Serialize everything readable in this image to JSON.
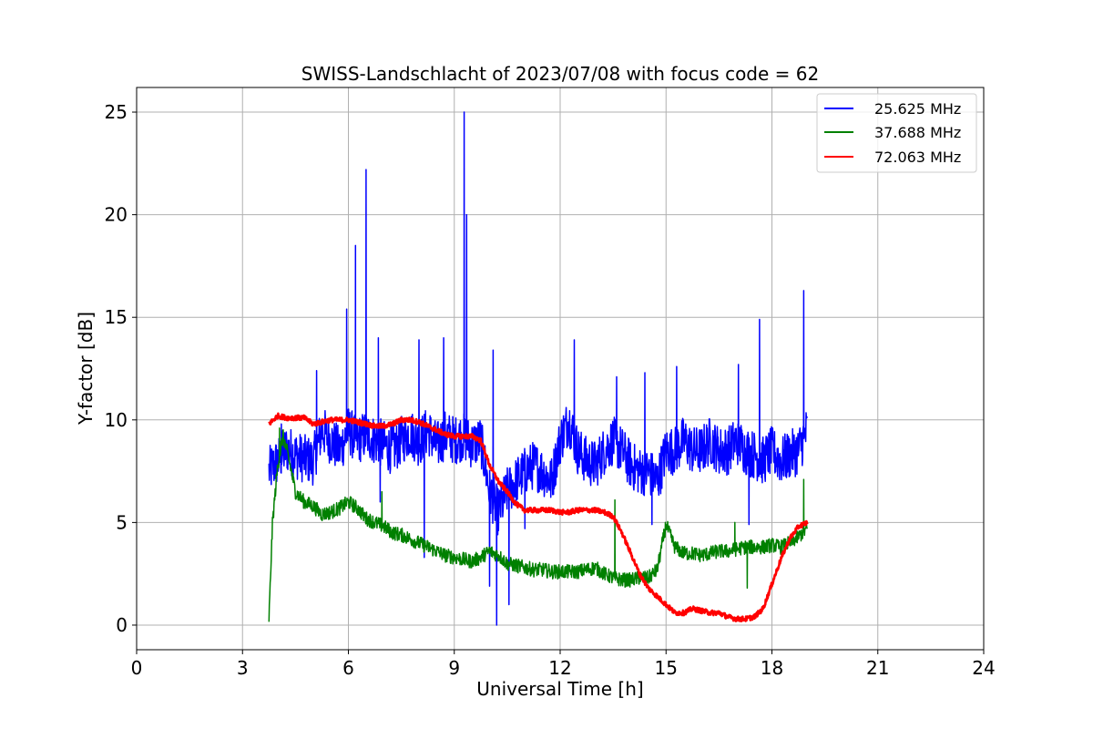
{
  "chart_data": {
    "type": "line",
    "title": "SWISS-Landschlacht of 2023/07/08 with focus code = 62",
    "xlabel": "Universal Time [h]",
    "ylabel": "Y-factor [dB]",
    "xlim": [
      0,
      24
    ],
    "ylim": [
      -1.2,
      26.2
    ],
    "xticks": [
      0,
      3,
      6,
      9,
      12,
      15,
      18,
      21,
      24
    ],
    "yticks": [
      0,
      5,
      10,
      15,
      20,
      25
    ],
    "grid": true,
    "legend_position": "top-right",
    "series": [
      {
        "name": "25.625 MHz",
        "color": "#0000ff",
        "x": [
          3.75,
          4.0,
          4.25,
          4.5,
          4.75,
          5.0,
          5.25,
          5.5,
          5.75,
          6.0,
          6.25,
          6.5,
          6.75,
          7.0,
          7.25,
          7.5,
          7.75,
          8.0,
          8.25,
          8.5,
          8.75,
          9.0,
          9.25,
          9.5,
          9.75,
          10.0,
          10.25,
          10.5,
          10.75,
          11.0,
          11.25,
          11.5,
          11.75,
          12.0,
          12.25,
          12.5,
          12.75,
          13.0,
          13.25,
          13.5,
          13.75,
          14.0,
          14.25,
          14.5,
          14.75,
          15.0,
          15.25,
          15.5,
          15.75,
          16.0,
          16.25,
          16.5,
          16.75,
          17.0,
          17.25,
          17.5,
          17.75,
          18.0,
          18.25,
          18.5,
          18.75,
          19.0
        ],
        "y": [
          7.5,
          8.0,
          8.6,
          8.3,
          8.1,
          8.0,
          9.5,
          9.0,
          8.5,
          9.5,
          9.0,
          9.3,
          9.0,
          8.8,
          8.5,
          9.0,
          9.4,
          8.9,
          9.5,
          8.7,
          9.3,
          9.0,
          9.2,
          8.8,
          9.0,
          6.5,
          5.5,
          6.5,
          7.0,
          7.5,
          7.8,
          7.5,
          7.0,
          9.0,
          10.0,
          8.5,
          8.0,
          7.8,
          8.5,
          9.0,
          8.5,
          7.8,
          7.5,
          7.5,
          7.0,
          8.5,
          8.5,
          9.0,
          8.5,
          8.5,
          9.0,
          8.5,
          8.5,
          9.0,
          8.5,
          8.3,
          8.0,
          8.5,
          8.0,
          8.3,
          8.5,
          9.5
        ],
        "spikes": [
          {
            "x": 4.1,
            "y": 9.8
          },
          {
            "x": 5.1,
            "y": 12.4
          },
          {
            "x": 5.95,
            "y": 15.4
          },
          {
            "x": 6.2,
            "y": 18.5
          },
          {
            "x": 6.5,
            "y": 22.2
          },
          {
            "x": 6.85,
            "y": 14.0
          },
          {
            "x": 8.0,
            "y": 13.9
          },
          {
            "x": 8.7,
            "y": 14.0
          },
          {
            "x": 9.28,
            "y": 25.0
          },
          {
            "x": 9.35,
            "y": 20.0
          },
          {
            "x": 10.1,
            "y": 13.4
          },
          {
            "x": 12.4,
            "y": 13.9
          },
          {
            "x": 13.6,
            "y": 12.1
          },
          {
            "x": 14.4,
            "y": 12.3
          },
          {
            "x": 15.3,
            "y": 12.6
          },
          {
            "x": 17.05,
            "y": 12.7
          },
          {
            "x": 17.65,
            "y": 14.9
          },
          {
            "x": 18.9,
            "y": 16.3
          }
        ],
        "dips": [
          {
            "x": 6.9,
            "y": 6.0
          },
          {
            "x": 8.15,
            "y": 3.3
          },
          {
            "x": 10.0,
            "y": 1.9
          },
          {
            "x": 10.2,
            "y": 0.0
          },
          {
            "x": 10.55,
            "y": 1.0
          },
          {
            "x": 11.0,
            "y": 4.7
          },
          {
            "x": 14.6,
            "y": 4.9
          },
          {
            "x": 17.35,
            "y": 4.9
          }
        ]
      },
      {
        "name": "37.688 MHz",
        "color": "#008000",
        "x": [
          3.75,
          3.85,
          4.0,
          4.15,
          4.3,
          4.5,
          4.75,
          5.0,
          5.25,
          5.5,
          5.75,
          6.0,
          6.25,
          6.5,
          6.75,
          7.0,
          7.25,
          7.5,
          7.75,
          8.0,
          8.25,
          8.5,
          8.75,
          9.0,
          9.25,
          9.5,
          9.75,
          10.0,
          10.25,
          10.5,
          10.75,
          11.0,
          11.25,
          11.5,
          11.75,
          12.0,
          12.25,
          12.5,
          12.75,
          13.0,
          13.25,
          13.5,
          13.75,
          14.0,
          14.25,
          14.5,
          14.75,
          15.0,
          15.25,
          15.5,
          15.75,
          16.0,
          16.25,
          16.5,
          16.75,
          17.0,
          17.25,
          17.5,
          17.75,
          18.0,
          18.25,
          18.5,
          18.75,
          19.0
        ],
        "y": [
          0.3,
          5.0,
          7.8,
          9.2,
          8.2,
          6.5,
          6.0,
          5.8,
          5.4,
          5.5,
          5.7,
          6.0,
          5.7,
          5.2,
          5.0,
          4.8,
          4.5,
          4.4,
          4.2,
          4.0,
          3.8,
          3.6,
          3.4,
          3.3,
          3.2,
          3.1,
          3.3,
          3.6,
          3.4,
          3.0,
          2.9,
          2.8,
          2.7,
          2.7,
          2.6,
          2.6,
          2.6,
          2.6,
          2.7,
          2.8,
          2.5,
          2.3,
          2.2,
          2.2,
          2.3,
          2.3,
          2.7,
          4.9,
          3.8,
          3.5,
          3.5,
          3.4,
          3.5,
          3.6,
          3.6,
          3.7,
          3.8,
          3.8,
          3.8,
          3.9,
          3.8,
          4.0,
          4.3,
          4.7
        ],
        "spikes": [
          {
            "x": 4.05,
            "y": 9.6
          },
          {
            "x": 6.95,
            "y": 6.5
          },
          {
            "x": 13.55,
            "y": 6.1
          },
          {
            "x": 16.95,
            "y": 5.0
          },
          {
            "x": 18.9,
            "y": 7.1
          }
        ],
        "dips": [
          {
            "x": 17.3,
            "y": 1.8
          }
        ]
      },
      {
        "name": "72.063 MHz",
        "color": "#ff0000",
        "x": [
          3.75,
          4.0,
          4.25,
          4.5,
          4.75,
          5.0,
          5.25,
          5.5,
          5.75,
          6.0,
          6.25,
          6.5,
          6.75,
          7.0,
          7.25,
          7.5,
          7.75,
          8.0,
          8.25,
          8.5,
          8.75,
          9.0,
          9.25,
          9.5,
          9.75,
          10.0,
          10.25,
          10.5,
          10.75,
          11.0,
          11.25,
          11.5,
          11.75,
          12.0,
          12.25,
          12.5,
          12.75,
          13.0,
          13.25,
          13.5,
          13.75,
          14.0,
          14.25,
          14.5,
          14.75,
          15.0,
          15.25,
          15.5,
          15.75,
          16.0,
          16.25,
          16.5,
          16.75,
          17.0,
          17.25,
          17.5,
          17.75,
          18.0,
          18.25,
          18.5,
          18.75,
          19.0
        ],
        "y": [
          9.8,
          10.2,
          10.1,
          10.1,
          10.1,
          9.8,
          9.9,
          10.0,
          10.0,
          10.0,
          9.9,
          9.8,
          9.7,
          9.7,
          9.8,
          10.0,
          10.0,
          9.9,
          9.7,
          9.5,
          9.3,
          9.2,
          9.2,
          9.2,
          9.0,
          7.8,
          7.0,
          6.5,
          5.9,
          5.6,
          5.6,
          5.6,
          5.6,
          5.5,
          5.5,
          5.6,
          5.6,
          5.6,
          5.5,
          5.3,
          4.5,
          3.5,
          2.5,
          1.8,
          1.4,
          1.0,
          0.6,
          0.6,
          0.8,
          0.7,
          0.6,
          0.6,
          0.4,
          0.3,
          0.3,
          0.4,
          0.8,
          2.0,
          3.2,
          4.2,
          4.8,
          5.0
        ]
      }
    ]
  }
}
